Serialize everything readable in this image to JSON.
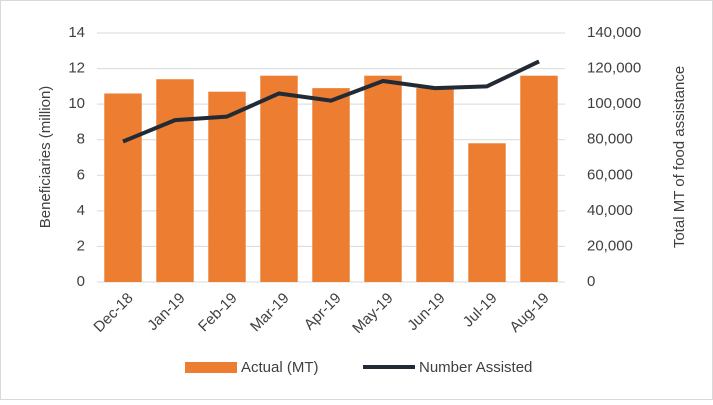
{
  "chart_data": {
    "type": "bar_line",
    "categories": [
      "Dec-18",
      "Jan-19",
      "Feb-19",
      "Mar-19",
      "Apr-19",
      "May-19",
      "Jun-19",
      "Jul-19",
      "Aug-19"
    ],
    "ylabel": "Beneficiaries (million)",
    "y2label": "Total MT of food assistance",
    "ylim": [
      0,
      14
    ],
    "yticks": [
      0,
      2,
      4,
      6,
      8,
      10,
      12,
      14
    ],
    "y2lim": [
      0,
      140000
    ],
    "y2ticks": [
      {
        "value": 0,
        "label": "0"
      },
      {
        "value": 20000,
        "label": "20,000"
      },
      {
        "value": 40000,
        "label": "40,000"
      },
      {
        "value": 60000,
        "label": "60,000"
      },
      {
        "value": 80000,
        "label": "80,000"
      },
      {
        "value": 100000,
        "label": "100,000"
      },
      {
        "value": 120000,
        "label": "120,000"
      },
      {
        "value": 140000,
        "label": "140,000"
      }
    ],
    "grid": true,
    "legend": "bottom",
    "series": [
      {
        "name": "Actual (MT)",
        "type": "bar",
        "axis": "y2",
        "color": "#ed7d31",
        "values": [
          106000,
          114000,
          107000,
          116000,
          109000,
          116000,
          109000,
          78000,
          116000
        ]
      },
      {
        "name": "Number Assisted",
        "type": "line",
        "axis": "y",
        "color": "#222a35",
        "values": [
          7.9,
          9.1,
          9.3,
          10.6,
          10.2,
          11.3,
          10.9,
          11.0,
          12.4
        ]
      }
    ]
  }
}
